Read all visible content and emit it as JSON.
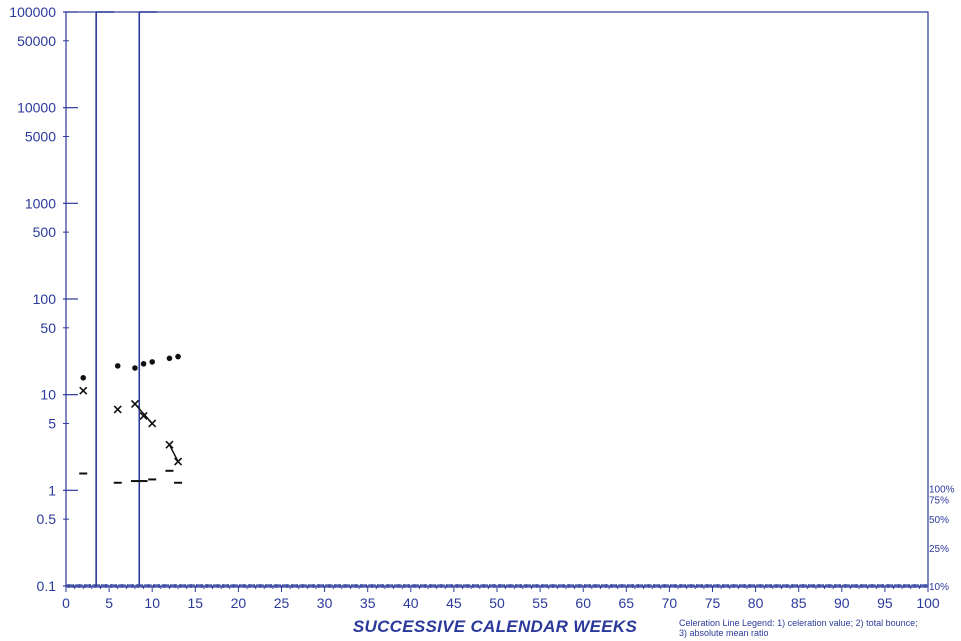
{
  "chart_data": {
    "type": "scatter",
    "title": "",
    "xlabel": "SUCCESSIVE CALENDAR WEEKS",
    "ylabel": "",
    "xlim": [
      0,
      100
    ],
    "ylim": [
      0.1,
      100000
    ],
    "y_scale": "log",
    "grid": false,
    "x_ticks": [
      0,
      5,
      10,
      15,
      20,
      25,
      30,
      35,
      40,
      45,
      50,
      55,
      60,
      65,
      70,
      75,
      80,
      85,
      90,
      95,
      100
    ],
    "y_tick_labels": [
      {
        "value": 100000,
        "label": "100000"
      },
      {
        "value": 50000,
        "label": "50000"
      },
      {
        "value": 10000,
        "label": "10000"
      },
      {
        "value": 5000,
        "label": "5000"
      },
      {
        "value": 1000,
        "label": "1000"
      },
      {
        "value": 500,
        "label": "500"
      },
      {
        "value": 100,
        "label": "100"
      },
      {
        "value": 50,
        "label": "50"
      },
      {
        "value": 10,
        "label": "10"
      },
      {
        "value": 5,
        "label": "5"
      },
      {
        "value": 1,
        "label": "1"
      },
      {
        "value": 0.5,
        "label": "0.5"
      },
      {
        "value": 0.1,
        "label": "0.1"
      }
    ],
    "right_axis_labels": [
      {
        "value": 1.05,
        "label": "100%"
      },
      {
        "value": 0.8,
        "label": "75%"
      },
      {
        "value": 0.5,
        "label": "50%"
      },
      {
        "value": 0.25,
        "label": "25%"
      },
      {
        "value": 0.1,
        "label": "10%"
      }
    ],
    "phase_lines_x": [
      3.5,
      8.5
    ],
    "series": [
      {
        "marker": "dot",
        "points": [
          [
            2,
            15
          ],
          [
            6,
            20
          ],
          [
            8,
            19
          ],
          [
            9,
            21
          ],
          [
            10,
            22
          ],
          [
            12,
            24
          ],
          [
            13,
            25
          ]
        ]
      },
      {
        "marker": "x",
        "points": [
          [
            2,
            11
          ],
          [
            6,
            7
          ],
          [
            8,
            8
          ],
          [
            9,
            6
          ],
          [
            10,
            5
          ],
          [
            12,
            3
          ],
          [
            13,
            2
          ]
        ]
      },
      {
        "marker": "dash",
        "points": [
          [
            2,
            1.5
          ],
          [
            6,
            1.2
          ],
          [
            8,
            1.25
          ],
          [
            9,
            1.25
          ],
          [
            10,
            1.3
          ],
          [
            12,
            1.6
          ],
          [
            13,
            1.2
          ]
        ]
      }
    ],
    "trend_lines": [
      {
        "marker": "x",
        "from": [
          8,
          8
        ],
        "to": [
          10,
          5
        ]
      },
      {
        "marker": "x",
        "from": [
          12,
          3
        ],
        "to": [
          13,
          2
        ]
      },
      {
        "marker": "dash",
        "from": [
          8,
          1.25
        ],
        "to": [
          9,
          1.25
        ]
      }
    ],
    "footnote": "Celeration Line Legend: 1) celeration value;  2) total bounce;  3) absolute mean ratio"
  },
  "colors": {
    "axis": "#2b3a9a",
    "marker": "#111111",
    "background": "#ffffff"
  }
}
